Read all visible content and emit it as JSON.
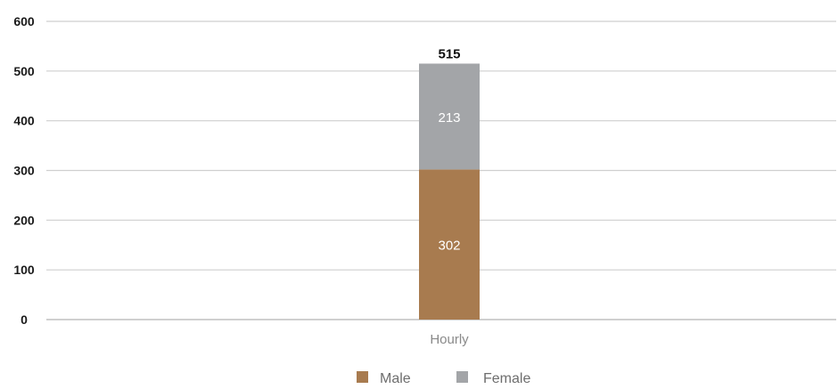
{
  "chart_data": {
    "type": "bar",
    "stacked": true,
    "categories": [
      "Hourly"
    ],
    "series": [
      {
        "name": "Male",
        "values": [
          302
        ],
        "color": "#a87b4f"
      },
      {
        "name": "Female",
        "values": [
          213
        ],
        "color": "#a3a5a8"
      }
    ],
    "totals": [
      515
    ],
    "ylim": [
      0,
      600
    ],
    "yticks": [
      0,
      100,
      200,
      300,
      400,
      500,
      600
    ],
    "grid": true,
    "legend": "bottom-center"
  }
}
